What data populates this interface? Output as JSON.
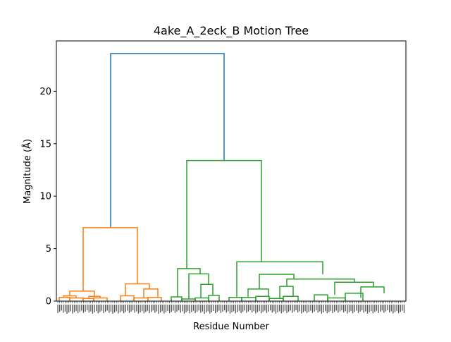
{
  "chart_data": {
    "type": "dendrogram",
    "title": "4ake_A_2eck_B Motion Tree",
    "xlabel": "Residue Number",
    "ylabel": "Magnitude (Å)",
    "ylim": [
      0,
      24.8
    ],
    "yticks": [
      0,
      5,
      10,
      15,
      20
    ],
    "colors": {
      "root": "#1f77b4",
      "cluster_1": "#ff7f0e",
      "cluster_2": "#2ca02c"
    },
    "leaf_labels_legible": false,
    "nodes": {
      "root": {
        "height": 23.6,
        "children": [
          "A",
          "B"
        ],
        "color": "root"
      },
      "A": {
        "height": 7.0,
        "children": [
          "A1",
          "A2"
        ],
        "color": "cluster_1"
      },
      "A1": {
        "height": 0.95,
        "children": [
          "A1a",
          "A1b"
        ],
        "color": "cluster_1"
      },
      "A1a": {
        "height": 0.5,
        "children": [
          "A1a1",
          "A1a2"
        ],
        "color": "cluster_1"
      },
      "A1a1": {
        "height": 0.35,
        "children": [
          "L:1",
          "L:2"
        ],
        "color": "cluster_1"
      },
      "A1a2": {
        "height": 0.3,
        "children": [
          "L:2",
          "L:3"
        ],
        "color": "cluster_1"
      },
      "A1b": {
        "height": 0.45,
        "children": [
          "A1b1",
          "A1b2"
        ],
        "color": "cluster_1"
      },
      "A1b1": {
        "height": 0.25,
        "children": [
          "L:3",
          "L:4"
        ],
        "color": "cluster_1"
      },
      "A1b2": {
        "height": 0.3,
        "children": [
          "L:4",
          "L:5"
        ],
        "color": "cluster_1"
      },
      "A2": {
        "height": 1.65,
        "children": [
          "A2a",
          "A2b"
        ],
        "color": "cluster_1"
      },
      "A2a": {
        "height": 0.5,
        "children": [
          "L:6",
          "L:7"
        ],
        "color": "cluster_1"
      },
      "A2b": {
        "height": 1.15,
        "children": [
          "A2b1",
          "A2b2"
        ],
        "color": "cluster_1"
      },
      "A2b1": {
        "height": 0.3,
        "children": [
          "L:7",
          "L:8"
        ],
        "color": "cluster_1"
      },
      "A2b2": {
        "height": 0.35,
        "children": [
          "L:8",
          "L:9"
        ],
        "color": "cluster_1"
      },
      "B": {
        "height": 13.4,
        "children": [
          "B1",
          "B2"
        ],
        "color": "cluster_2"
      },
      "B1": {
        "height": 3.1,
        "children": [
          "B1a",
          "B1b"
        ],
        "color": "cluster_2"
      },
      "B1a": {
        "height": 0.4,
        "children": [
          "L:10",
          "L:11"
        ],
        "color": "cluster_2"
      },
      "B1b": {
        "height": 2.6,
        "children": [
          "B1b1",
          "B1b2"
        ],
        "color": "cluster_2"
      },
      "B1b1": {
        "height": 0.2,
        "children": [
          "L:11",
          "L:12"
        ],
        "color": "cluster_2"
      },
      "B1b2": {
        "height": 1.6,
        "children": [
          "B1b2a",
          "B1b2b"
        ],
        "color": "cluster_2"
      },
      "B1b2a": {
        "height": 0.3,
        "children": [
          "L:12",
          "L:13"
        ],
        "color": "cluster_2"
      },
      "B1b2b": {
        "height": 0.55,
        "children": [
          "L:13",
          "L:14"
        ],
        "color": "cluster_2"
      },
      "B2": {
        "height": 3.75,
        "children": [
          "B2a",
          "B2b"
        ],
        "color": "cluster_2"
      },
      "B2a": {
        "height": 0.35,
        "children": [
          "L:15",
          "L:16"
        ],
        "color": "cluster_2"
      },
      "B2b": {
        "height": 2.55,
        "children": [
          "B2b1",
          "B2b2"
        ],
        "color": "cluster_2"
      },
      "B2b1": {
        "height": 1.15,
        "children": [
          "B2b1a",
          "B2b1b"
        ],
        "color": "cluster_2"
      },
      "B2b1a": {
        "height": 0.35,
        "children": [
          "L:16",
          "L:17"
        ],
        "color": "cluster_2"
      },
      "B2b1b": {
        "height": 0.45,
        "children": [
          "L:17",
          "L:18"
        ],
        "color": "cluster_2"
      },
      "B2b2": {
        "height": 2.1,
        "children": [
          "B2b2a",
          "B2b2b"
        ],
        "color": "cluster_2"
      },
      "B2b2a": {
        "height": 1.4,
        "children": [
          "B2b2a1",
          "B2b2a2"
        ],
        "color": "cluster_2"
      },
      "B2b2a1": {
        "height": 0.25,
        "children": [
          "L:18",
          "L:19"
        ],
        "color": "cluster_2"
      },
      "B2b2a2": {
        "height": 0.45,
        "children": [
          "L:19",
          "L:20"
        ],
        "color": "cluster_2"
      },
      "B2b2b": {
        "height": 1.8,
        "children": [
          "B2b2b1",
          "B2b2b2"
        ],
        "color": "cluster_2"
      },
      "B2b2b1": {
        "height": 0.6,
        "children": [
          "L:21",
          "L:22"
        ],
        "color": "cluster_2"
      },
      "B2b2b2": {
        "height": 1.35,
        "children": [
          "B2b2b2a",
          "B2b2b2b"
        ],
        "color": "cluster_2"
      },
      "B2b2b2a": {
        "height": 0.3,
        "children": [
          "L:22",
          "L:23"
        ],
        "color": "cluster_2"
      },
      "B2b2b2b": {
        "height": 0.75,
        "children": [
          "L:23",
          "L:24"
        ],
        "color": "cluster_2"
      }
    }
  }
}
